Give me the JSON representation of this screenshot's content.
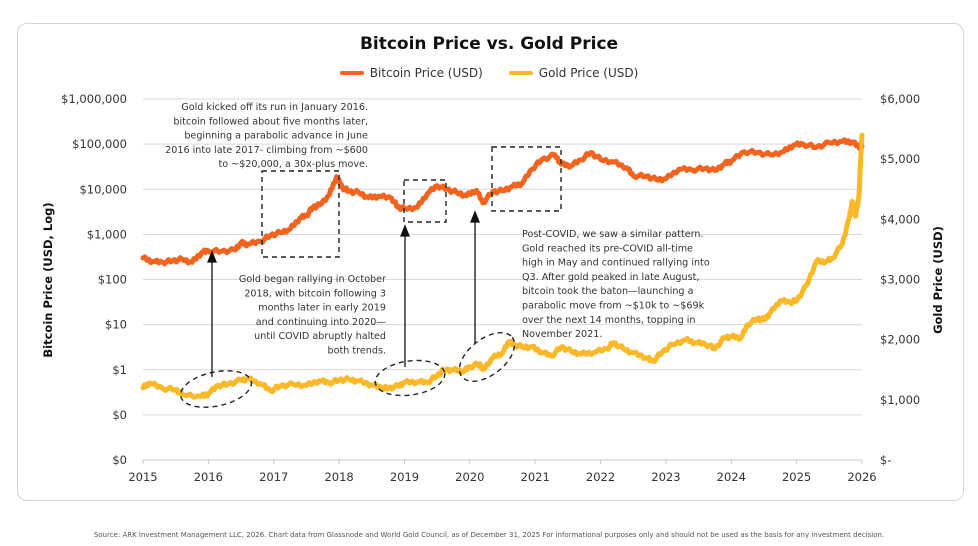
{
  "chart_data": {
    "type": "line",
    "title": "Bitcoin Price vs. Gold Price",
    "xlabel": "",
    "ylabel_left": "Bitcoin Price (USD, Log)",
    "ylabel_right": "Gold Price (USD)",
    "x_ticks": [
      "2015",
      "2016",
      "2017",
      "2018",
      "2019",
      "2020",
      "2021",
      "2022",
      "2023",
      "2024",
      "2025",
      "2026"
    ],
    "xlim": [
      2015,
      2026
    ],
    "y_left_scale": "log",
    "y_left_ticks": [
      "$1,000,000",
      "$100,000",
      "$10,000",
      "$1,000",
      "$100",
      "$10",
      "$1",
      "$0",
      "$0"
    ],
    "y_left_lim_log10": [
      -2,
      6
    ],
    "y_right_ticks": [
      "$6,000",
      "$5,000",
      "$4,000",
      "$3,000",
      "$2,000",
      "$1,000",
      "$-"
    ],
    "y_right_lim": [
      0,
      6000
    ],
    "grid": true,
    "legend": "top-center",
    "series": [
      {
        "name": "Bitcoin Price (USD)",
        "color": "#f4631e",
        "axis": "left",
        "points": [
          [
            2015.0,
            300
          ],
          [
            2015.15,
            250
          ],
          [
            2015.3,
            240
          ],
          [
            2015.45,
            260
          ],
          [
            2015.6,
            280
          ],
          [
            2015.75,
            240
          ],
          [
            2015.9,
            400
          ],
          [
            2016.0,
            430
          ],
          [
            2016.2,
            420
          ],
          [
            2016.4,
            450
          ],
          [
            2016.5,
            650
          ],
          [
            2016.6,
            600
          ],
          [
            2016.8,
            700
          ],
          [
            2016.95,
            950
          ],
          [
            2017.1,
            1100
          ],
          [
            2017.25,
            1300
          ],
          [
            2017.4,
            2300
          ],
          [
            2017.5,
            2600
          ],
          [
            2017.6,
            4000
          ],
          [
            2017.7,
            4500
          ],
          [
            2017.85,
            7500
          ],
          [
            2017.96,
            19000
          ],
          [
            2018.05,
            11000
          ],
          [
            2018.15,
            9000
          ],
          [
            2018.3,
            8500
          ],
          [
            2018.45,
            6500
          ],
          [
            2018.6,
            7000
          ],
          [
            2018.8,
            6400
          ],
          [
            2018.9,
            4000
          ],
          [
            2019.0,
            3700
          ],
          [
            2019.2,
            4000
          ],
          [
            2019.35,
            8000
          ],
          [
            2019.5,
            12000
          ],
          [
            2019.65,
            10000
          ],
          [
            2019.8,
            8500
          ],
          [
            2019.95,
            7200
          ],
          [
            2020.1,
            9500
          ],
          [
            2020.2,
            5000
          ],
          [
            2020.35,
            8800
          ],
          [
            2020.5,
            9300
          ],
          [
            2020.65,
            11500
          ],
          [
            2020.8,
            13500
          ],
          [
            2020.95,
            28000
          ],
          [
            2021.1,
            45000
          ],
          [
            2021.3,
            58000
          ],
          [
            2021.4,
            36000
          ],
          [
            2021.55,
            33000
          ],
          [
            2021.7,
            45000
          ],
          [
            2021.85,
            65000
          ],
          [
            2022.0,
            46000
          ],
          [
            2022.2,
            40000
          ],
          [
            2022.4,
            30000
          ],
          [
            2022.5,
            20000
          ],
          [
            2022.7,
            19500
          ],
          [
            2022.85,
            16500
          ],
          [
            2023.0,
            17000
          ],
          [
            2023.2,
            28000
          ],
          [
            2023.4,
            27000
          ],
          [
            2023.6,
            29000
          ],
          [
            2023.75,
            26000
          ],
          [
            2023.9,
            37000
          ],
          [
            2024.0,
            42000
          ],
          [
            2024.2,
            68000
          ],
          [
            2024.4,
            65000
          ],
          [
            2024.6,
            58000
          ],
          [
            2024.8,
            68000
          ],
          [
            2024.95,
            95000
          ],
          [
            2025.1,
            100000
          ],
          [
            2025.3,
            85000
          ],
          [
            2025.5,
            108000
          ],
          [
            2025.7,
            115000
          ],
          [
            2025.85,
            112000
          ],
          [
            2025.95,
            88000
          ],
          [
            2026.0,
            90000
          ]
        ]
      },
      {
        "name": "Gold Price (USD)",
        "color": "#fbb829",
        "axis": "right",
        "points": [
          [
            2015.0,
            1200
          ],
          [
            2015.1,
            1280
          ],
          [
            2015.3,
            1190
          ],
          [
            2015.5,
            1170
          ],
          [
            2015.6,
            1090
          ],
          [
            2015.9,
            1060
          ],
          [
            2016.0,
            1100
          ],
          [
            2016.15,
            1240
          ],
          [
            2016.3,
            1260
          ],
          [
            2016.5,
            1330
          ],
          [
            2016.6,
            1350
          ],
          [
            2016.8,
            1270
          ],
          [
            2016.95,
            1150
          ],
          [
            2017.1,
            1230
          ],
          [
            2017.3,
            1260
          ],
          [
            2017.5,
            1240
          ],
          [
            2017.7,
            1320
          ],
          [
            2017.85,
            1280
          ],
          [
            2018.0,
            1330
          ],
          [
            2018.15,
            1340
          ],
          [
            2018.3,
            1310
          ],
          [
            2018.5,
            1250
          ],
          [
            2018.65,
            1200
          ],
          [
            2018.75,
            1190
          ],
          [
            2018.9,
            1230
          ],
          [
            2019.0,
            1290
          ],
          [
            2019.2,
            1300
          ],
          [
            2019.35,
            1290
          ],
          [
            2019.5,
            1400
          ],
          [
            2019.6,
            1500
          ],
          [
            2019.75,
            1500
          ],
          [
            2019.9,
            1470
          ],
          [
            2020.0,
            1550
          ],
          [
            2020.15,
            1600
          ],
          [
            2020.2,
            1500
          ],
          [
            2020.35,
            1700
          ],
          [
            2020.5,
            1780
          ],
          [
            2020.6,
            1970
          ],
          [
            2020.65,
            1920
          ],
          [
            2020.8,
            1880
          ],
          [
            2020.95,
            1880
          ],
          [
            2021.1,
            1790
          ],
          [
            2021.25,
            1730
          ],
          [
            2021.4,
            1880
          ],
          [
            2021.55,
            1810
          ],
          [
            2021.7,
            1760
          ],
          [
            2021.9,
            1790
          ],
          [
            2022.1,
            1850
          ],
          [
            2022.2,
            1950
          ],
          [
            2022.35,
            1850
          ],
          [
            2022.5,
            1780
          ],
          [
            2022.7,
            1700
          ],
          [
            2022.8,
            1640
          ],
          [
            2022.95,
            1800
          ],
          [
            2023.1,
            1920
          ],
          [
            2023.3,
            2000
          ],
          [
            2023.45,
            1950
          ],
          [
            2023.6,
            1930
          ],
          [
            2023.75,
            1850
          ],
          [
            2023.9,
            2040
          ],
          [
            2024.0,
            2050
          ],
          [
            2024.15,
            2030
          ],
          [
            2024.25,
            2250
          ],
          [
            2024.4,
            2350
          ],
          [
            2024.5,
            2330
          ],
          [
            2024.6,
            2450
          ],
          [
            2024.75,
            2650
          ],
          [
            2024.9,
            2620
          ],
          [
            2025.0,
            2650
          ],
          [
            2025.15,
            2900
          ],
          [
            2025.3,
            3300
          ],
          [
            2025.45,
            3300
          ],
          [
            2025.55,
            3350
          ],
          [
            2025.7,
            3600
          ],
          [
            2025.8,
            4000
          ],
          [
            2025.85,
            4300
          ],
          [
            2025.9,
            4050
          ],
          [
            2025.95,
            4350
          ],
          [
            2026.0,
            5400
          ]
        ]
      }
    ],
    "annotations": [
      {
        "id": "annot-2016",
        "lines": [
          "Gold kicked off its run in January 2016.",
          "bitcoin followed about five months later,",
          "beginning a parabolic advance in June",
          "2016 into late 2017- climbing from ~$600",
          "to ~$20,000, a 30x-plus move."
        ]
      },
      {
        "id": "annot-2019",
        "lines": [
          "Gold began rallying in October",
          "2018, with bitcoin following  3",
          "months later in early 2019",
          "and continuing into 2020—",
          "until COVID abruptly halted",
          "both trends."
        ]
      },
      {
        "id": "annot-2020",
        "lines": [
          "Post-COVID, we saw a similar pattern.",
          "Gold reached its pre-COVID all-time",
          "high in May and continued rallying into",
          "Q3. After gold peaked in late August,",
          "bitcoin took the baton—launching a",
          "parabolic move from ~$10k to ~$69k",
          "over the next 14 months, topping in",
          "November 2021."
        ]
      }
    ],
    "source": "Source: ARK Investment Management LLC, 2026. Chart data from Glassnode and World Gold Council, as of December 31, 2025 For informational purposes only and should not be used as the basis for any investment decision."
  }
}
